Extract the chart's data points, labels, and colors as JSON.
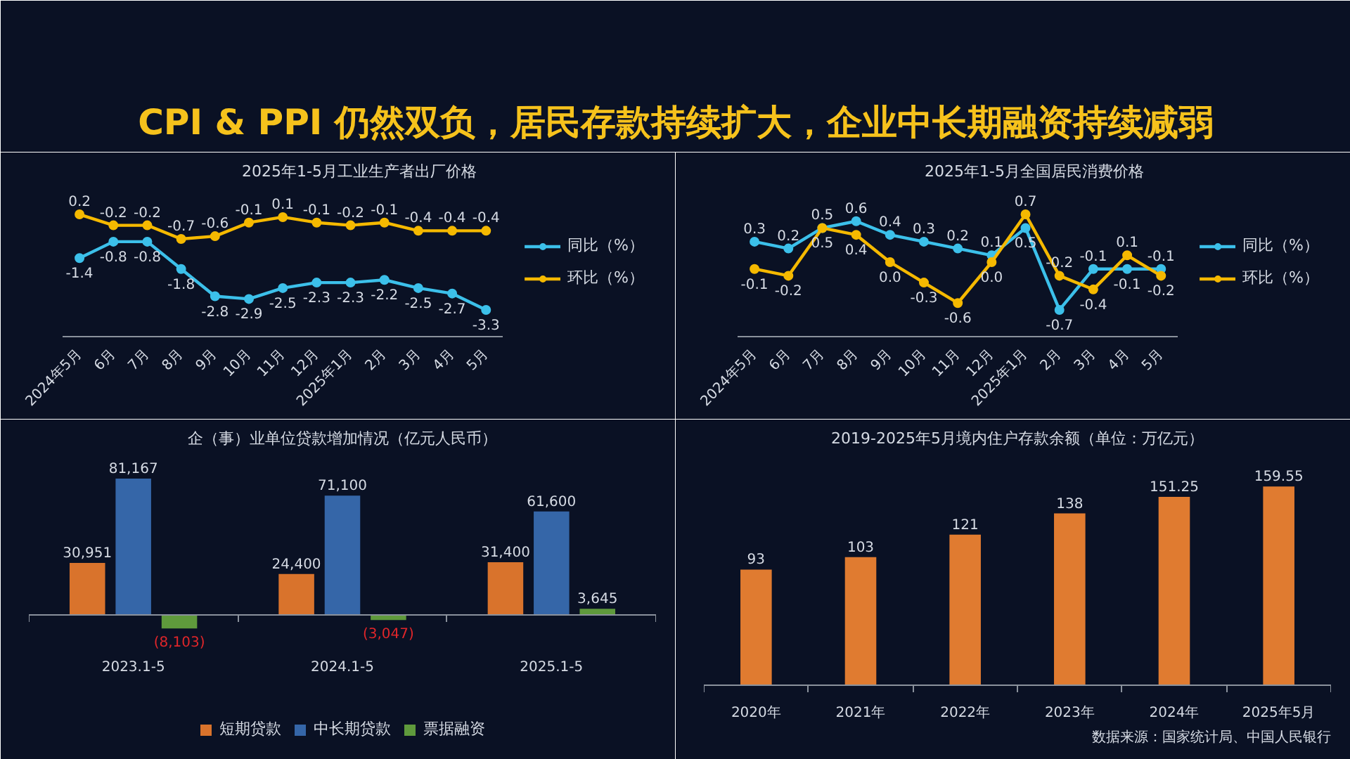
{
  "chart_data": [
    {
      "type": "other",
      "title": "CPI & PPI 仍然双负，居民存款持续扩大，企业中长期融资持续减弱"
    },
    {
      "type": "line",
      "title": "2025年1-5月工业生产者出厂价格",
      "categories": [
        "2024年5月",
        "6月",
        "7月",
        "8月",
        "9月",
        "10月",
        "11月",
        "12月",
        "2025年1月",
        "2月",
        "3月",
        "4月",
        "5月"
      ],
      "series": [
        {
          "name": "同比（%）",
          "color": "#3cc0ea",
          "values": [
            -1.4,
            -0.8,
            -0.8,
            -1.8,
            -2.8,
            -2.9,
            -2.5,
            -2.3,
            -2.3,
            -2.2,
            -2.5,
            -2.7,
            -3.3
          ]
        },
        {
          "name": "环比（%）",
          "color": "#f5b900",
          "values": [
            0.2,
            -0.2,
            -0.2,
            -0.7,
            -0.6,
            -0.1,
            0.1,
            -0.1,
            -0.2,
            -0.1,
            -0.4,
            -0.4,
            -0.4
          ]
        }
      ],
      "marker": "circle",
      "data_labels": true,
      "legend": "right",
      "tick_labels": "x"
    },
    {
      "type": "line",
      "title": "2025年1-5月全国居民消费价格",
      "categories": [
        "2024年5月",
        "6月",
        "7月",
        "8月",
        "9月",
        "10月",
        "11月",
        "12月",
        "2025年1月",
        "2月",
        "3月",
        "4月",
        "5月"
      ],
      "series": [
        {
          "name": "同比（%）",
          "color": "#3cc0ea",
          "values": [
            0.3,
            0.2,
            0.5,
            0.6,
            0.4,
            0.3,
            0.2,
            0.1,
            0.5,
            -0.7,
            -0.1,
            -0.1,
            -0.1
          ],
          "value_labels": [
            "0.3",
            "0.2",
            "0.5",
            "0.6",
            "0.4",
            "0.3",
            "0.2",
            "0.1",
            "0.5",
            "-0.7",
            "-0.1",
            "-0.1",
            "-0.1"
          ]
        },
        {
          "name": "环比（%）",
          "color": "#f5b900",
          "values": [
            -0.1,
            -0.2,
            0.5,
            0.4,
            0,
            -0.3,
            -0.6,
            0,
            0.7,
            -0.2,
            -0.4,
            0.1,
            -0.2
          ],
          "value_labels": [
            "-0.1",
            "-0.2",
            "0.5",
            "0.4",
            "0.0",
            "-0.3",
            "-0.6",
            "0.0",
            "0.7",
            "-0.2",
            "-0.4",
            "0.1",
            "-0.2"
          ]
        }
      ],
      "marker": "circle",
      "legend": "right",
      "tick_labels": "x"
    },
    {
      "type": "bar",
      "title": "企（事）业单位贷款增加情况（亿元人民币）",
      "categories": [
        "2023.1-5",
        "2024.1-5",
        "2025.1-5"
      ],
      "series": [
        {
          "name": "短期贷款",
          "color": "#d9732c",
          "values": [
            30951,
            24400,
            31400
          ],
          "value_labels": [
            "30,951",
            "24,400",
            "31,400"
          ]
        },
        {
          "name": "中长期贷款",
          "color": "#3566a8",
          "values": [
            81167,
            71100,
            61600
          ],
          "value_labels": [
            "81,167",
            "71,100",
            "61,600"
          ]
        },
        {
          "name": "票据融资",
          "color": "#5f9a3c",
          "values": [
            -8103,
            -3047,
            3645
          ],
          "value_labels": [
            "(8,103)",
            "(3,047)",
            "3,645"
          ]
        }
      ],
      "legend": "bottom",
      "tick_labels": "x"
    },
    {
      "type": "bar",
      "title": "2019-2025年5月境内住户存款余额（单位：万亿元）",
      "categories": [
        "2020年",
        "2021年",
        "2022年",
        "2023年",
        "2024年",
        "2025年5月"
      ],
      "values": [
        93,
        103,
        121,
        138,
        151.25,
        159.55
      ],
      "color": "#e07b30",
      "data_labels": true,
      "tick_labels": "x",
      "annotations": [
        "数据来源：国家统计局、中国人民银行"
      ]
    }
  ]
}
